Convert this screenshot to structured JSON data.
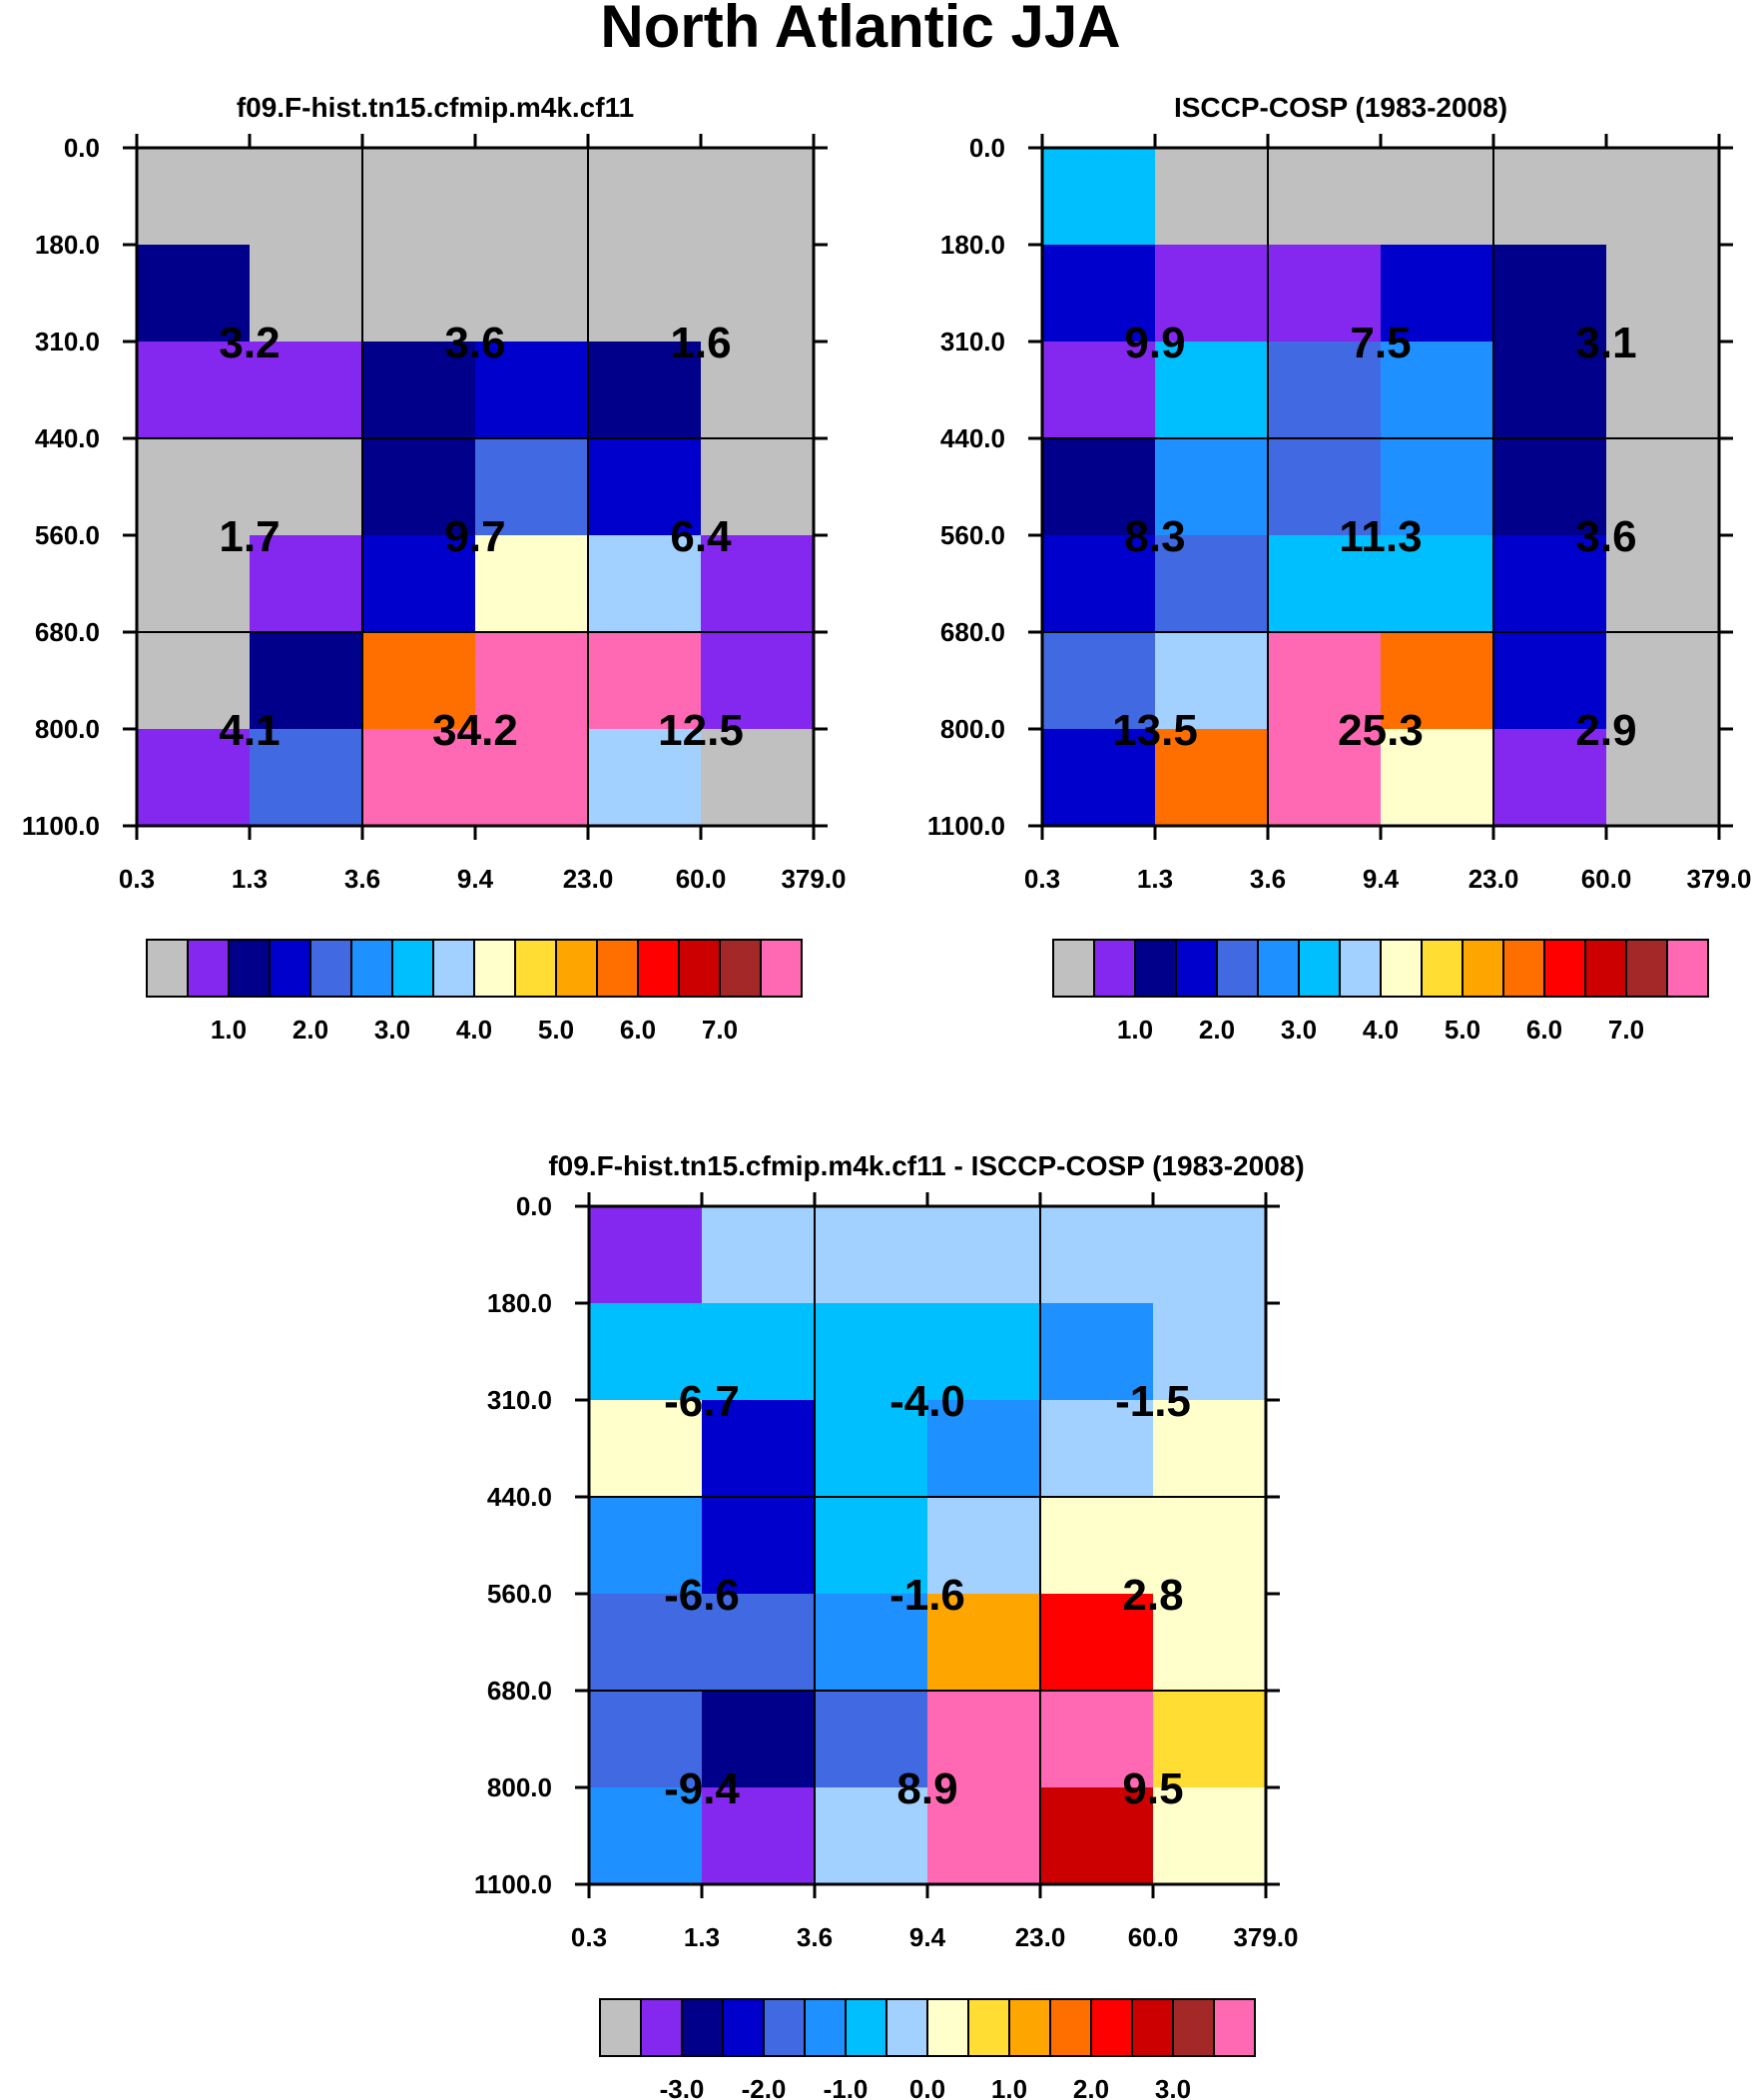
{
  "title": "North Atlantic JJA",
  "colors": {
    "gray": "#c0c0c0",
    "purple": "#8428ef",
    "navy": "#00008b",
    "darkblue": "#0000cd",
    "royalblue": "#4169e1",
    "dodgerblue": "#1e90ff",
    "deepskyblue": "#00bfff",
    "lightblue": "#a3d1ff",
    "lightyellow": "#ffffcc",
    "gold": "#ffdd33",
    "orange": "#ffa500",
    "darkorange": "#ff6f00",
    "red": "#ff0000",
    "crimson": "#cc0000",
    "brown": "#a52828",
    "pink": "#ff69b4"
  },
  "colorbar_colors": [
    "gray",
    "purple",
    "navy",
    "darkblue",
    "royalblue",
    "dodgerblue",
    "deepskyblue",
    "lightblue",
    "lightyellow",
    "gold",
    "orange",
    "darkorange",
    "red",
    "crimson",
    "brown",
    "pink"
  ],
  "chart_data": [
    {
      "type": "heatmap",
      "title": "f09.F-hist.tn15.cfmip.m4k.cf11",
      "xlabel": "",
      "ylabel": "",
      "x_ticks": [
        "0.3",
        "1.3",
        "3.6",
        "9.4",
        "23.0",
        "60.0",
        "379.0"
      ],
      "y_ticks": [
        "0.0",
        "180.0",
        "310.0",
        "440.0",
        "560.0",
        "680.0",
        "800.0",
        "1100.0"
      ],
      "cells": [
        [
          "gray",
          "gray",
          "gray",
          "gray",
          "gray",
          "gray"
        ],
        [
          "navy",
          "gray",
          "gray",
          "gray",
          "gray",
          "gray"
        ],
        [
          "purple",
          "purple",
          "navy",
          "darkblue",
          "navy",
          "gray"
        ],
        [
          "gray",
          "gray",
          "navy",
          "royalblue",
          "darkblue",
          "gray"
        ],
        [
          "gray",
          "purple",
          "darkblue",
          "lightyellow",
          "lightblue",
          "purple"
        ],
        [
          "gray",
          "navy",
          "darkorange",
          "pink",
          "pink",
          "purple"
        ],
        [
          "purple",
          "royalblue",
          "pink",
          "pink",
          "lightblue",
          "gray"
        ]
      ],
      "block_values": [
        [
          "3.2",
          "3.6",
          "1.6"
        ],
        [
          "1.7",
          "9.7",
          "6.4"
        ],
        [
          "4.1",
          "34.2",
          "12.5"
        ]
      ],
      "colorbar": {
        "labels": [
          "1.0",
          "2.0",
          "3.0",
          "4.0",
          "5.0",
          "6.0",
          "7.0"
        ],
        "label_start_box": 2
      }
    },
    {
      "type": "heatmap",
      "title": "ISCCP-COSP (1983-2008)",
      "xlabel": "",
      "ylabel": "",
      "x_ticks": [
        "0.3",
        "1.3",
        "3.6",
        "9.4",
        "23.0",
        "60.0",
        "379.0"
      ],
      "y_ticks": [
        "0.0",
        "180.0",
        "310.0",
        "440.0",
        "560.0",
        "680.0",
        "800.0",
        "1100.0"
      ],
      "cells": [
        [
          "deepskyblue",
          "gray",
          "gray",
          "gray",
          "gray",
          "gray"
        ],
        [
          "darkblue",
          "purple",
          "purple",
          "darkblue",
          "navy",
          "gray"
        ],
        [
          "purple",
          "deepskyblue",
          "royalblue",
          "dodgerblue",
          "navy",
          "gray"
        ],
        [
          "navy",
          "dodgerblue",
          "royalblue",
          "dodgerblue",
          "navy",
          "gray"
        ],
        [
          "darkblue",
          "royalblue",
          "deepskyblue",
          "deepskyblue",
          "darkblue",
          "gray"
        ],
        [
          "royalblue",
          "lightblue",
          "pink",
          "darkorange",
          "darkblue",
          "gray"
        ],
        [
          "darkblue",
          "darkorange",
          "pink",
          "lightyellow",
          "purple",
          "gray"
        ]
      ],
      "block_values": [
        [
          "9.9",
          "7.5",
          "3.1"
        ],
        [
          "8.3",
          "11.3",
          "3.6"
        ],
        [
          "13.5",
          "25.3",
          "2.9"
        ]
      ],
      "colorbar": {
        "labels": [
          "1.0",
          "2.0",
          "3.0",
          "4.0",
          "5.0",
          "6.0",
          "7.0"
        ],
        "label_start_box": 2
      }
    },
    {
      "type": "heatmap",
      "title": "f09.F-hist.tn15.cfmip.m4k.cf11 - ISCCP-COSP (1983-2008)",
      "xlabel": "",
      "ylabel": "",
      "x_ticks": [
        "0.3",
        "1.3",
        "3.6",
        "9.4",
        "23.0",
        "60.0",
        "379.0"
      ],
      "y_ticks": [
        "0.0",
        "180.0",
        "310.0",
        "440.0",
        "560.0",
        "680.0",
        "800.0",
        "1100.0"
      ],
      "cells": [
        [
          "purple",
          "lightblue",
          "lightblue",
          "lightblue",
          "lightblue",
          "lightblue"
        ],
        [
          "deepskyblue",
          "deepskyblue",
          "deepskyblue",
          "deepskyblue",
          "dodgerblue",
          "lightblue"
        ],
        [
          "lightyellow",
          "darkblue",
          "deepskyblue",
          "dodgerblue",
          "lightblue",
          "lightyellow"
        ],
        [
          "dodgerblue",
          "darkblue",
          "deepskyblue",
          "lightblue",
          "lightyellow",
          "lightyellow"
        ],
        [
          "royalblue",
          "royalblue",
          "dodgerblue",
          "orange",
          "red",
          "lightyellow"
        ],
        [
          "royalblue",
          "navy",
          "royalblue",
          "pink",
          "pink",
          "gold"
        ],
        [
          "dodgerblue",
          "purple",
          "lightblue",
          "pink",
          "crimson",
          "lightyellow"
        ]
      ],
      "block_values": [
        [
          "-6.7",
          "-4.0",
          "-1.5"
        ],
        [
          "-6.6",
          "-1.6",
          "2.8"
        ],
        [
          "-9.4",
          "8.9",
          "9.5"
        ]
      ],
      "colorbar": {
        "labels": [
          "-3.0",
          "-2.0",
          "-1.0",
          "0.0",
          "1.0",
          "2.0",
          "3.0"
        ],
        "label_start_box": 2
      }
    }
  ]
}
